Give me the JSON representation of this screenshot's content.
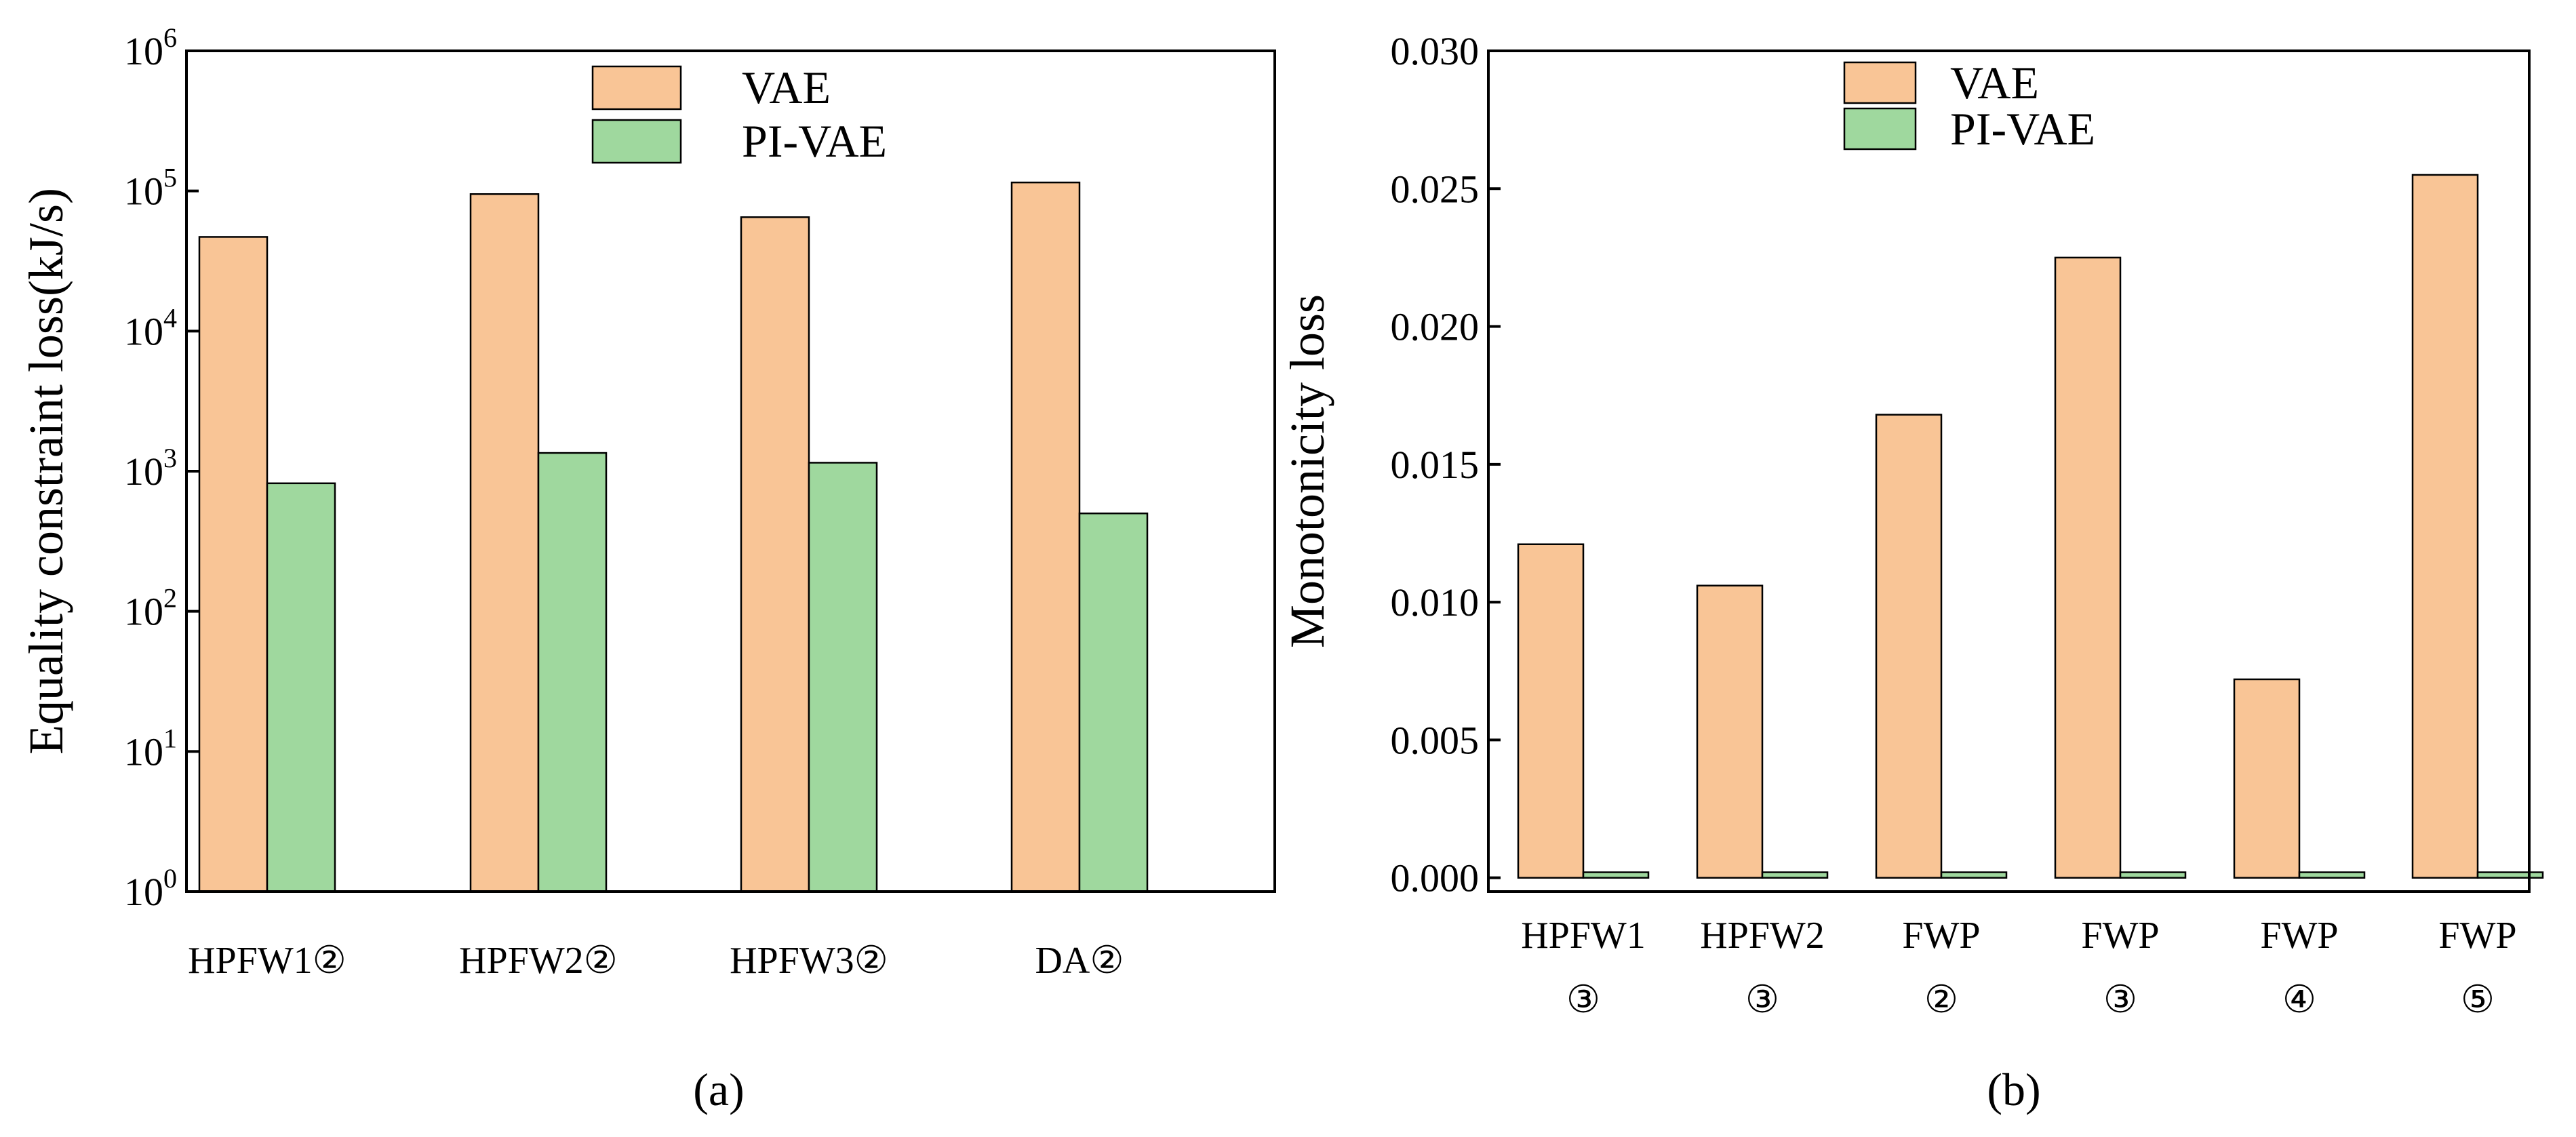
{
  "chart_data": [
    {
      "type": "bar",
      "panel_label": "(a)",
      "ylabel": "Equality constraint loss(kJ/s)",
      "yscale": "log",
      "ylim": [
        1,
        1000000
      ],
      "yticks": [
        {
          "value": 1,
          "base": "10",
          "exp": "0"
        },
        {
          "value": 10,
          "base": "10",
          "exp": "1"
        },
        {
          "value": 100,
          "base": "10",
          "exp": "2"
        },
        {
          "value": 1000,
          "base": "10",
          "exp": "3"
        },
        {
          "value": 10000,
          "base": "10",
          "exp": "4"
        },
        {
          "value": 100000,
          "base": "10",
          "exp": "5"
        },
        {
          "value": 1000000,
          "base": "10",
          "exp": "6"
        }
      ],
      "categories": [
        [
          "HPFW1②"
        ],
        [
          "HPFW2②"
        ],
        [
          "HPFW3②"
        ],
        [
          "DA②"
        ]
      ],
      "series": [
        {
          "name": "VAE",
          "color": "#f9c596",
          "values": [
            47000,
            95000,
            65000,
            115000
          ]
        },
        {
          "name": "PI-VAE",
          "color": "#9fd89e",
          "values": [
            820,
            1350,
            1150,
            500
          ]
        }
      ],
      "legend_position": "top-center"
    },
    {
      "type": "bar",
      "panel_label": "(b)",
      "ylabel": "Monotonicity loss",
      "yscale": "linear",
      "ylim": [
        -0.0005,
        0.03
      ],
      "yticks": [
        {
          "value": 0.0,
          "label": "0.000"
        },
        {
          "value": 0.005,
          "label": "0.005"
        },
        {
          "value": 0.01,
          "label": "0.010"
        },
        {
          "value": 0.015,
          "label": "0.015"
        },
        {
          "value": 0.02,
          "label": "0.020"
        },
        {
          "value": 0.025,
          "label": "0.025"
        },
        {
          "value": 0.03,
          "label": "0.030"
        }
      ],
      "categories": [
        [
          "HPFW1",
          "③"
        ],
        [
          "HPFW2",
          "③"
        ],
        [
          "FWP",
          "②"
        ],
        [
          "FWP",
          "③"
        ],
        [
          "FWP",
          "④"
        ],
        [
          "FWP",
          "⑤"
        ]
      ],
      "series": [
        {
          "name": "VAE",
          "color": "#f9c596",
          "values": [
            0.0121,
            0.0106,
            0.0168,
            0.0225,
            0.0072,
            0.0255
          ]
        },
        {
          "name": "PI-VAE",
          "color": "#9fd89e",
          "values": [
            0.0002,
            0.0002,
            0.0002,
            0.0002,
            0.0002,
            0.0002
          ]
        }
      ],
      "legend_position": "top-left"
    }
  ]
}
